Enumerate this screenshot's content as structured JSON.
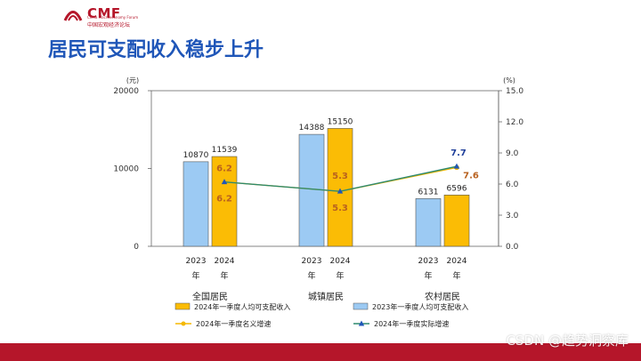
{
  "header": {
    "logo_text": "CMF",
    "logo_subtitle": "中国宏观经济论坛",
    "logo_subtitle_en": "China Macroeconomy Forum",
    "title": "居民可支配收入稳步上升"
  },
  "watermark": "CSDN @趋势洞察库",
  "colors": {
    "brand_red": "#b5162a",
    "title_blue": "#1f56b8",
    "bar_2023": "#9ccaf3",
    "bar_2024": "#fbbc05",
    "nominal_line": "#f5b800",
    "real_line": "#2f8a6e",
    "real_label": "#1f3f9a",
    "nominal_label": "#b8611f"
  },
  "chart_data": {
    "type": "bar",
    "left_unit": "(元)",
    "right_unit": "(%)",
    "y_ticks": [
      "20000",
      "10000",
      "0"
    ],
    "y_lim": [
      0,
      20000
    ],
    "y2_ticks": [
      "15.0",
      "12.0",
      "9.0",
      "6.0",
      "3.0",
      "0.0"
    ],
    "y2_lim": [
      0,
      15
    ],
    "categories": [
      "全国居民",
      "城镇居民",
      "农村居民"
    ],
    "year_labels": [
      "2023",
      "2024"
    ],
    "year_suffix": "年",
    "series": [
      {
        "name": "2023年一季度人均可支配收入",
        "values": [
          10870,
          14388,
          6131
        ],
        "labels": [
          "10870",
          "14388",
          "6131"
        ]
      },
      {
        "name": "2024年一季度人均可支配收入",
        "values": [
          11539,
          15150,
          6596
        ],
        "labels": [
          "11539",
          "15150",
          "6596"
        ]
      }
    ],
    "lines": [
      {
        "name": "2024年一季度名义增速",
        "values": [
          6.2,
          5.3,
          7.6
        ],
        "labels": [
          "6.2",
          "5.3",
          "7.6"
        ]
      },
      {
        "name": "2024年一季度实际增速",
        "values": [
          6.2,
          5.3,
          7.7
        ],
        "labels": [
          "6.2",
          "5.3",
          "7.7"
        ]
      }
    ]
  }
}
